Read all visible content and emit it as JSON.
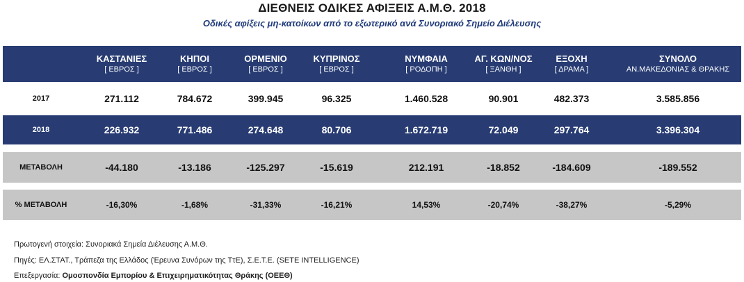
{
  "title": "ΔΙΕΘΝΕΙΣ ΟΔΙΚΕΣ ΑΦΙΞΕΙΣ  Α.Μ.Θ. 2018",
  "subtitle": "Οδικές αφίξεις μη-κατοίκων από το εξωτερικό ανά Συνοριακό Σημείο Διέλευσης",
  "columns": [
    {
      "name": "ΚΑΣΤΑΝΙΕΣ",
      "sub": "[ ΕΒΡΟΣ ]"
    },
    {
      "name": "ΚΗΠΟΙ",
      "sub": "[ ΕΒΡΟΣ ]"
    },
    {
      "name": "ΟΡΜΕΝΙΟ",
      "sub": "[ ΕΒΡΟΣ ]"
    },
    {
      "name": "ΚΥΠΡΙΝΟΣ",
      "sub": "[ ΕΒΡΟΣ ]"
    },
    {
      "name": "ΝΥΜΦΑΙΑ",
      "sub": "[ ΡΟΔΟΠΗ ]"
    },
    {
      "name": "ΑΓ. ΚΩΝ/ΝΟΣ",
      "sub": "[ ΞΑΝΘΗ ]"
    },
    {
      "name": "ΕΞΟΧΗ",
      "sub": "[ ΔΡΑΜΑ ]"
    },
    {
      "name": "ΣΥΝΟΛΟ",
      "sub": "ΑΝ.ΜΑΚΕΔΟΝΙΑΣ & ΘΡΑΚΗΣ"
    }
  ],
  "rows": [
    {
      "label": "2017",
      "values": [
        "271.112",
        "784.672",
        "399.945",
        "96.325",
        "1.460.528",
        "90.901",
        "482.373",
        "3.585.856"
      ]
    },
    {
      "label": "2018",
      "values": [
        "226.932",
        "771.486",
        "274.648",
        "80.706",
        "1.672.719",
        "72.049",
        "297.764",
        "3.396.304"
      ]
    },
    {
      "label": "ΜΕΤΑΒΟΛΗ",
      "values": [
        "-44.180",
        "-13.186",
        "-125.297",
        "-15.619",
        "212.191",
        "-18.852",
        "-184.609",
        "-189.552"
      ]
    },
    {
      "label": "% ΜΕΤΑΒΟΛΗ",
      "values": [
        "-16,30%",
        "-1,68%",
        "-31,33%",
        "-16,21%",
        "14,53%",
        "-20,74%",
        "-38,27%",
        "-5,29%"
      ]
    }
  ],
  "footer": {
    "primary": "Πρωτογενή στοιχεία: Συνοριακά Σημεία Διέλευσης Α.Μ.Θ.",
    "sources": "Πηγές: ΕΛ.ΣΤΑΤ., Τράπεζα της Ελλάδος (Έρευνα Συνόρων της ΤτΕ), Σ.Ε.Τ.Ε. (SETE INTELLIGENCE)",
    "processing_label": "Επεξεργασία:",
    "processing_org": "Ομοσπονδία Εμπορίου & Επιχειρηματικότητας Θράκης (ΟΕΕΘ)"
  },
  "colors": {
    "header_bg": "#283c73",
    "band_grey": "#c6c6c6",
    "subtitle": "#1f3a7a"
  }
}
